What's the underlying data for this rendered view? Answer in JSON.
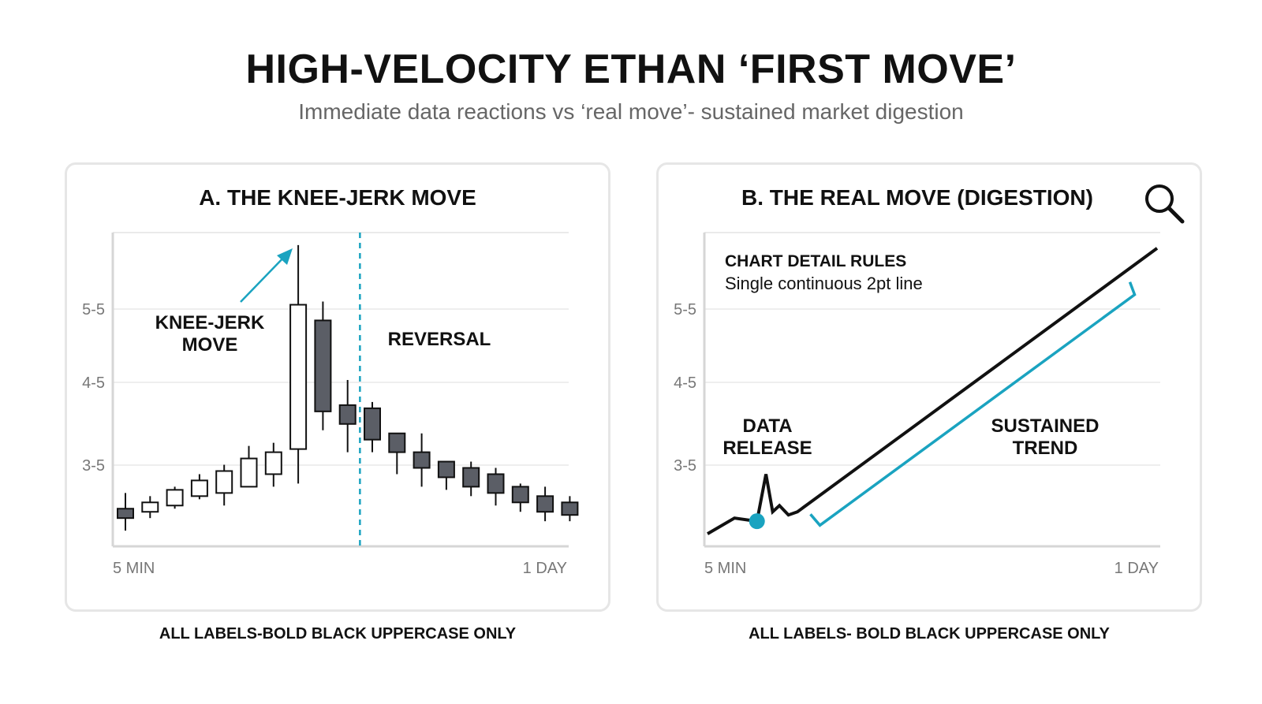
{
  "title": "HIGH-VELOCITY ETHAN ‘FIRST MOVE’",
  "subtitle": "Immediate data reactions vs ‘real move’- sustained market digestion",
  "footnotes": {
    "a": "ALL LABELS-BOLD BLACK UPPERCASE ONLY",
    "b": "ALL LABELS- BOLD BLACK UPPERCASE ONLY"
  },
  "colors": {
    "accent": "#1aa3c0",
    "bear_candle": "#5b5e66",
    "bull_candle": "#ffffff",
    "line": "#111111",
    "grid": "#e4e4e4"
  },
  "icons": {
    "panel_b": "search-icon"
  },
  "chart_data": [
    {
      "type": "candlestick",
      "title": "A. THE KNEE-JERK MOVE",
      "yticks": [
        "5-5",
        "4-5",
        "3-5"
      ],
      "xtick_labels": [
        "5 MIN",
        "1 DAY"
      ],
      "annotations": [
        {
          "text": [
            "KNEE-JERK",
            "MOVE"
          ]
        },
        {
          "text": [
            "REVERSAL"
          ]
        }
      ],
      "ylim": [
        0,
        10
      ],
      "event_index": 9.5,
      "candles": [
        {
          "o": 1.2,
          "h": 1.7,
          "l": 0.5,
          "c": 0.9
        },
        {
          "o": 1.1,
          "h": 1.6,
          "l": 0.9,
          "c": 1.4
        },
        {
          "o": 1.3,
          "h": 1.9,
          "l": 1.2,
          "c": 1.8
        },
        {
          "o": 1.6,
          "h": 2.3,
          "l": 1.5,
          "c": 2.1
        },
        {
          "o": 1.7,
          "h": 2.6,
          "l": 1.3,
          "c": 2.4
        },
        {
          "o": 1.9,
          "h": 3.2,
          "l": 1.9,
          "c": 2.8
        },
        {
          "o": 2.3,
          "h": 3.3,
          "l": 1.9,
          "c": 3.0
        },
        {
          "o": 3.1,
          "h": 9.6,
          "l": 2.0,
          "c": 7.7
        },
        {
          "o": 7.2,
          "h": 7.8,
          "l": 3.7,
          "c": 4.3
        },
        {
          "o": 4.5,
          "h": 5.3,
          "l": 3.0,
          "c": 3.9
        },
        {
          "o": 4.4,
          "h": 4.6,
          "l": 3.0,
          "c": 3.4
        },
        {
          "o": 3.6,
          "h": 3.6,
          "l": 2.3,
          "c": 3.0
        },
        {
          "o": 3.0,
          "h": 3.6,
          "l": 1.9,
          "c": 2.5
        },
        {
          "o": 2.7,
          "h": 2.7,
          "l": 1.8,
          "c": 2.2
        },
        {
          "o": 2.5,
          "h": 2.7,
          "l": 1.6,
          "c": 1.9
        },
        {
          "o": 2.3,
          "h": 2.5,
          "l": 1.3,
          "c": 1.7
        },
        {
          "o": 1.9,
          "h": 2.0,
          "l": 1.1,
          "c": 1.4
        },
        {
          "o": 1.6,
          "h": 1.9,
          "l": 0.8,
          "c": 1.1
        },
        {
          "o": 1.4,
          "h": 1.6,
          "l": 0.8,
          "c": 1.0
        }
      ]
    },
    {
      "type": "line",
      "title": "B. THE REAL MOVE (DIGESTION)",
      "yticks": [
        "5-5",
        "4-5",
        "3-5"
      ],
      "xtick_labels": [
        "5 MIN",
        "1 DAY"
      ],
      "xlim": [
        0,
        100
      ],
      "ylim": [
        0,
        10
      ],
      "rules": {
        "heading": "CHART DETAIL RULES",
        "detail": "Single continuous 2pt line"
      },
      "annotations": [
        {
          "text": [
            "DATA",
            "RELEASE"
          ]
        },
        {
          "text": [
            "SUSTAINED",
            "TREND"
          ]
        }
      ],
      "series": [
        {
          "x": [
            0,
            6,
            11,
            13,
            14.5,
            16,
            18,
            20,
            100
          ],
          "y": [
            0.4,
            0.9,
            0.8,
            2.3,
            1.1,
            1.3,
            1.0,
            1.1,
            9.5
          ]
        }
      ],
      "event_point": {
        "x": 11,
        "y": 0.8
      },
      "bracket": {
        "x_start": 25,
        "x_end": 95
      }
    }
  ]
}
